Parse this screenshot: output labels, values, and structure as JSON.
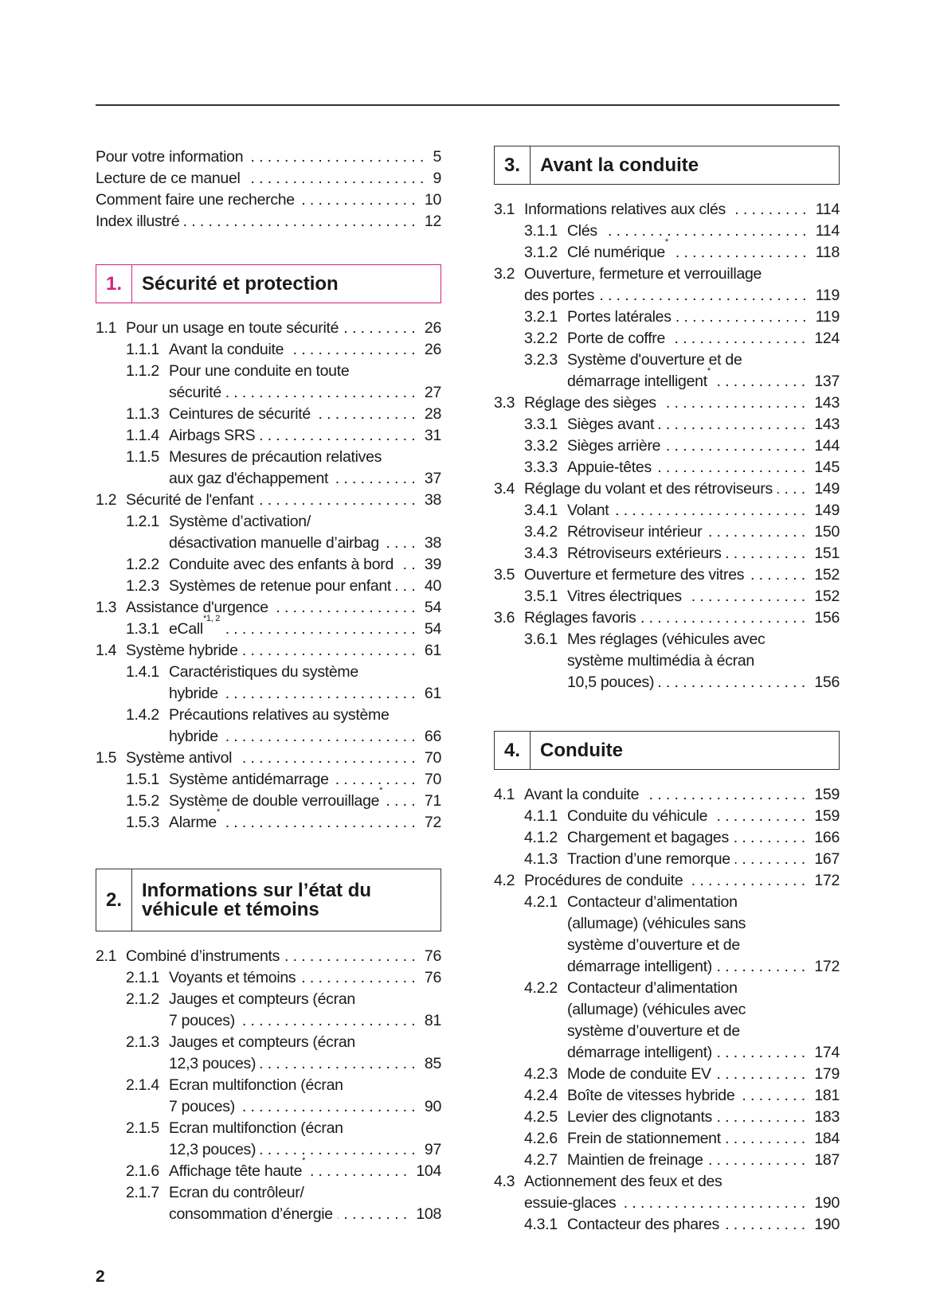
{
  "page_number": "2",
  "accent_color": "#d4237f",
  "intro": [
    {
      "num": "",
      "lines": [
        "Pour votre information"
      ],
      "page": "5",
      "level": 0
    },
    {
      "num": "",
      "lines": [
        "Lecture de ce manuel"
      ],
      "page": "9",
      "level": 0
    },
    {
      "num": "",
      "lines": [
        "Comment faire une recherche"
      ],
      "page": "10",
      "level": 0
    },
    {
      "num": "",
      "lines": [
        "Index illustré"
      ],
      "page": "12",
      "level": 0
    }
  ],
  "sections": [
    {
      "number": "1.",
      "title": "Sécurité et protection",
      "entries": [
        {
          "num": "1.1",
          "lines": [
            "Pour un usage en toute sécurité"
          ],
          "page": "26",
          "level": 1
        },
        {
          "num": "1.1.1",
          "lines": [
            "Avant la conduite"
          ],
          "page": "26",
          "level": 2
        },
        {
          "num": "1.1.2",
          "lines": [
            "Pour une conduite en toute",
            "sécurité"
          ],
          "page": "27",
          "level": 2
        },
        {
          "num": "1.1.3",
          "lines": [
            "Ceintures de sécurité"
          ],
          "page": "28",
          "level": 2
        },
        {
          "num": "1.1.4",
          "lines": [
            "Airbags SRS"
          ],
          "page": "31",
          "level": 2
        },
        {
          "num": "1.1.5",
          "lines": [
            "Mesures de précaution relatives",
            "aux gaz d'échappement"
          ],
          "page": "37",
          "level": 2
        },
        {
          "num": "1.2",
          "lines": [
            "Sécurité de l'enfant"
          ],
          "page": "38",
          "level": 1
        },
        {
          "num": "1.2.1",
          "lines": [
            "Système d’activation/",
            "désactivation manuelle d’airbag"
          ],
          "page": "38",
          "level": 2
        },
        {
          "num": "1.2.2",
          "lines": [
            "Conduite avec des enfants à bord"
          ],
          "page": "39",
          "level": 2
        },
        {
          "num": "1.2.3",
          "lines": [
            "Systèmes de retenue pour enfant"
          ],
          "page": "40",
          "level": 2
        },
        {
          "num": "1.3",
          "lines": [
            "Assistance d'urgence"
          ],
          "page": "54",
          "level": 1
        },
        {
          "num": "1.3.1",
          "lines": [
            "eCall"
          ],
          "sup": "*1, 2",
          "page": "54",
          "level": 2
        },
        {
          "num": "1.4",
          "lines": [
            "Système hybride"
          ],
          "page": "61",
          "level": 1
        },
        {
          "num": "1.4.1",
          "lines": [
            "Caractéristiques du système",
            "hybride"
          ],
          "page": "61",
          "level": 2
        },
        {
          "num": "1.4.2",
          "lines": [
            "Précautions relatives au système",
            "hybride"
          ],
          "page": "66",
          "level": 2
        },
        {
          "num": "1.5",
          "lines": [
            "Système antivol"
          ],
          "page": "70",
          "level": 1
        },
        {
          "num": "1.5.1",
          "lines": [
            "Système antidémarrage"
          ],
          "page": "70",
          "level": 2
        },
        {
          "num": "1.5.2",
          "lines": [
            "Système de double verrouillage"
          ],
          "sup": "*",
          "page": "71",
          "level": 2
        },
        {
          "num": "1.5.3",
          "lines": [
            "Alarme"
          ],
          "sup": "*",
          "page": "72",
          "level": 2
        }
      ]
    },
    {
      "number": "2.",
      "title_lines": [
        "Informations sur l’état du",
        "véhicule et témoins"
      ],
      "entries": [
        {
          "num": "2.1",
          "lines": [
            "Combiné d’instruments"
          ],
          "page": "76",
          "level": 1
        },
        {
          "num": "2.1.1",
          "lines": [
            "Voyants et témoins"
          ],
          "page": "76",
          "level": 2
        },
        {
          "num": "2.1.2",
          "lines": [
            "Jauges et compteurs (écran",
            "7 pouces)"
          ],
          "page": "81",
          "level": 2
        },
        {
          "num": "2.1.3",
          "lines": [
            "Jauges et compteurs (écran",
            "12,3 pouces)"
          ],
          "page": "85",
          "level": 2
        },
        {
          "num": "2.1.4",
          "lines": [
            "Ecran multifonction (écran",
            "7 pouces)"
          ],
          "page": "90",
          "level": 2
        },
        {
          "num": "2.1.5",
          "lines": [
            "Ecran multifonction (écran",
            "12,3 pouces)"
          ],
          "page": "97",
          "level": 2
        },
        {
          "num": "2.1.6",
          "lines": [
            "Affichage tête haute"
          ],
          "sup": "*",
          "page": "104",
          "level": 2
        },
        {
          "num": "2.1.7",
          "lines": [
            "Ecran du contrôleur/",
            "consommation d’énergie"
          ],
          "page": "108",
          "level": 2
        }
      ]
    },
    {
      "number": "3.",
      "title": "Avant la conduite",
      "entries": [
        {
          "num": "3.1",
          "lines": [
            "Informations relatives aux clés"
          ],
          "page": "114",
          "level": 1
        },
        {
          "num": "3.1.1",
          "lines": [
            "Clés"
          ],
          "page": "114",
          "level": 2
        },
        {
          "num": "3.1.2",
          "lines": [
            "Clé numérique"
          ],
          "sup": "*",
          "page": "118",
          "level": 2
        },
        {
          "num": "3.2",
          "lines": [
            "Ouverture, fermeture et verrouillage",
            "des portes"
          ],
          "page": "119",
          "level": 1
        },
        {
          "num": "3.2.1",
          "lines": [
            "Portes latérales"
          ],
          "page": "119",
          "level": 2
        },
        {
          "num": "3.2.2",
          "lines": [
            "Porte de coffre"
          ],
          "page": "124",
          "level": 2
        },
        {
          "num": "3.2.3",
          "lines": [
            "Système d'ouverture et de",
            "démarrage intelligent"
          ],
          "sup": "*",
          "page": "137",
          "level": 2
        },
        {
          "num": "3.3",
          "lines": [
            "Réglage des sièges"
          ],
          "page": "143",
          "level": 1
        },
        {
          "num": "3.3.1",
          "lines": [
            "Sièges avant"
          ],
          "page": "143",
          "level": 2
        },
        {
          "num": "3.3.2",
          "lines": [
            "Sièges arrière"
          ],
          "page": "144",
          "level": 2
        },
        {
          "num": "3.3.3",
          "lines": [
            "Appuie-têtes"
          ],
          "page": "145",
          "level": 2
        },
        {
          "num": "3.4",
          "lines": [
            "Réglage du volant et des rétroviseurs"
          ],
          "page": "149",
          "level": 1
        },
        {
          "num": "3.4.1",
          "lines": [
            "Volant"
          ],
          "page": "149",
          "level": 2
        },
        {
          "num": "3.4.2",
          "lines": [
            "Rétroviseur intérieur"
          ],
          "page": "150",
          "level": 2
        },
        {
          "num": "3.4.3",
          "lines": [
            "Rétroviseurs extérieurs"
          ],
          "page": "151",
          "level": 2
        },
        {
          "num": "3.5",
          "lines": [
            "Ouverture et fermeture des vitres"
          ],
          "page": "152",
          "level": 1
        },
        {
          "num": "3.5.1",
          "lines": [
            "Vitres électriques"
          ],
          "page": "152",
          "level": 2
        },
        {
          "num": "3.6",
          "lines": [
            "Réglages favoris"
          ],
          "page": "156",
          "level": 1
        },
        {
          "num": "3.6.1",
          "lines": [
            "Mes réglages (véhicules avec",
            "système multimédia à écran",
            "10,5 pouces)"
          ],
          "page": "156",
          "level": 2
        }
      ]
    },
    {
      "number": "4.",
      "title": "Conduite",
      "entries": [
        {
          "num": "4.1",
          "lines": [
            "Avant la conduite"
          ],
          "page": "159",
          "level": 1
        },
        {
          "num": "4.1.1",
          "lines": [
            "Conduite du véhicule"
          ],
          "page": "159",
          "level": 2
        },
        {
          "num": "4.1.2",
          "lines": [
            "Chargement et bagages"
          ],
          "page": "166",
          "level": 2
        },
        {
          "num": "4.1.3",
          "lines": [
            "Traction d’une remorque"
          ],
          "page": "167",
          "level": 2
        },
        {
          "num": "4.2",
          "lines": [
            "Procédures de conduite"
          ],
          "page": "172",
          "level": 1
        },
        {
          "num": "4.2.1",
          "lines": [
            "Contacteur d’alimentation",
            "(allumage) (véhicules sans",
            "système d’ouverture et de",
            "démarrage intelligent)"
          ],
          "page": "172",
          "level": 2
        },
        {
          "num": "4.2.2",
          "lines": [
            "Contacteur d’alimentation",
            "(allumage) (véhicules avec",
            "système d’ouverture et de",
            "démarrage intelligent)"
          ],
          "page": "174",
          "level": 2
        },
        {
          "num": "4.2.3",
          "lines": [
            "Mode de conduite EV"
          ],
          "page": "179",
          "level": 2
        },
        {
          "num": "4.2.4",
          "lines": [
            "Boîte de vitesses hybride"
          ],
          "page": "181",
          "level": 2
        },
        {
          "num": "4.2.5",
          "lines": [
            "Levier des clignotants"
          ],
          "page": "183",
          "level": 2
        },
        {
          "num": "4.2.6",
          "lines": [
            "Frein de stationnement"
          ],
          "page": "184",
          "level": 2
        },
        {
          "num": "4.2.7",
          "lines": [
            "Maintien de freinage"
          ],
          "page": "187",
          "level": 2
        },
        {
          "num": "4.3",
          "lines": [
            "Actionnement des feux et des",
            "essuie-glaces"
          ],
          "page": "190",
          "level": 1
        },
        {
          "num": "4.3.1",
          "lines": [
            "Contacteur des phares"
          ],
          "page": "190",
          "level": 2
        }
      ]
    }
  ]
}
